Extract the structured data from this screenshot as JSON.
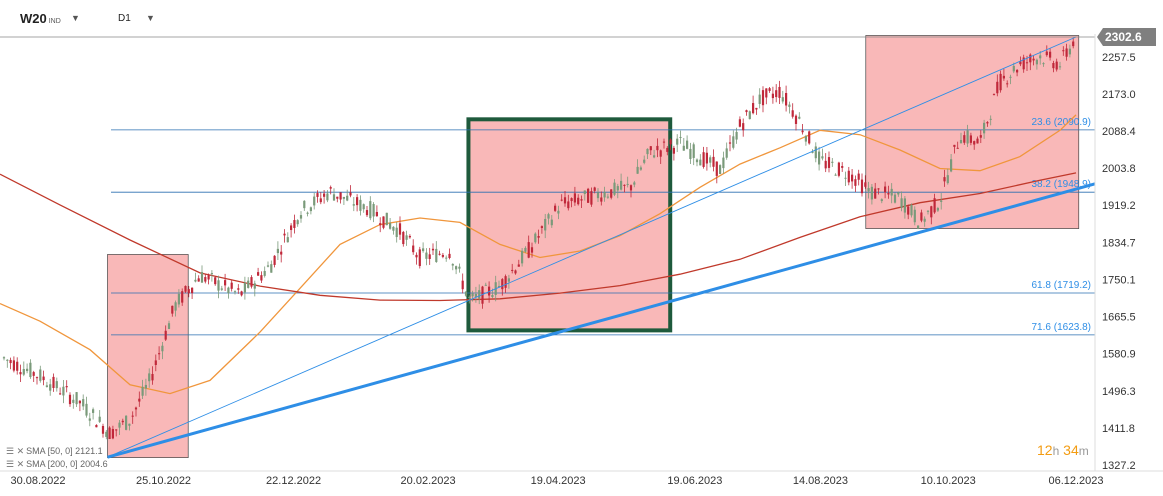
{
  "header": {
    "symbol": "W20",
    "symbol_type": "IND",
    "timeframe": "D1"
  },
  "timer": {
    "hours": "12",
    "h_unit": "h",
    "minutes": "34",
    "m_unit": "m"
  },
  "legend": [
    {
      "label": "SMA [50, 0] 2121.1"
    },
    {
      "label": "SMA [200, 0] 2004.6"
    }
  ],
  "price_tag": "2302.6",
  "chart_data": {
    "type": "candlestick",
    "title": "",
    "y_axis_ticks": [
      "2257.5",
      "2173.0",
      "2088.4",
      "2003.8",
      "1919.2",
      "1834.7",
      "1750.1",
      "1665.5",
      "1580.9",
      "1496.3",
      "1411.8",
      "1327.2"
    ],
    "x_axis_ticks": [
      "30.08.2022",
      "25.10.2022",
      "22.12.2022",
      "20.02.2023",
      "19.04.2023",
      "19.06.2023",
      "14.08.2023",
      "10.10.2023",
      "06.12.2023"
    ],
    "ylim": [
      1327.2,
      2302.6
    ],
    "last_price": 2302.6,
    "fib_levels": [
      {
        "label": "23.6 (2090.9)",
        "value": 2090.9
      },
      {
        "label": "38.2 (1948.9)",
        "value": 1948.9
      },
      {
        "label": "61.8 (1719.2)",
        "value": 1719.2
      },
      {
        "label": "71.6 (1623.8)",
        "value": 1623.8
      }
    ],
    "moving_averages": [
      {
        "name": "SMA [50, 0]",
        "color": "#f0963c"
      },
      {
        "name": "SMA [200, 0]",
        "color": "#c0392b"
      }
    ],
    "colors": {
      "up": "#7a9a7a",
      "down": "#c0283a",
      "trend": "#2e8ee6",
      "zone_fill": "#f7a6a6",
      "box_border": "#1e5a3c"
    }
  }
}
